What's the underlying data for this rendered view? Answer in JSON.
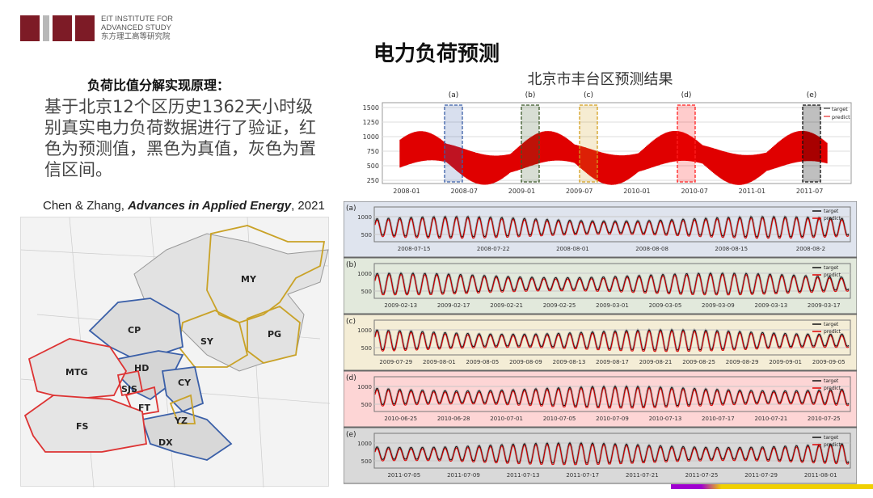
{
  "logo": {
    "line1": "EIT INSTITUTE FOR",
    "line2": "ADVANCED STUDY",
    "line3": "东方理工高等研究院",
    "colors": {
      "brand": "#7d1b26"
    }
  },
  "title": "电力负荷预测",
  "subtitle": "负荷比值分解实现原理：",
  "body": "基于北京12个区历史1362天小时级别真实电力负荷数据进行了验证，红色为预测值，黑色为真值，灰色为置信区间。",
  "citation": {
    "authors": "Chen & Zhang, ",
    "journal": "Advances in Applied Energy",
    "year": ", 2021"
  },
  "map": {
    "labels": [
      "MY",
      "CP",
      "SY",
      "PG",
      "HD",
      "MTG",
      "CY",
      "SJS",
      "FT",
      "FS",
      "YZ",
      "DX"
    ]
  },
  "overview": {
    "title": "北京市丰台区预测结果",
    "yticks": [
      "1500",
      "1250",
      "1000",
      "750",
      "500",
      "250"
    ],
    "xticks": [
      "2008-01",
      "2008-07",
      "2009-01",
      "2009-07",
      "2010-01",
      "2010-07",
      "2011-01",
      "2011-07"
    ],
    "windows": [
      {
        "label": "(a)",
        "color": "#3a5fa8"
      },
      {
        "label": "(b)",
        "color": "#3d5a2a"
      },
      {
        "label": "(c)",
        "color": "#d4a020"
      },
      {
        "label": "(d)",
        "color": "#ff2020"
      },
      {
        "label": "(e)",
        "color": "#111111"
      }
    ],
    "legend": [
      "target",
      "predict"
    ]
  },
  "panels": [
    {
      "label": "(a)",
      "bg": "#dfe4ee",
      "yticks": [
        "1000",
        "500"
      ],
      "xticks": [
        "2008-07-15",
        "2008-07-22",
        "2008-08-01",
        "2008-08-08",
        "2008-08-15",
        "2008-08-2"
      ]
    },
    {
      "label": "(b)",
      "bg": "#e2e9dc",
      "yticks": [
        "1000",
        "500"
      ],
      "xticks": [
        "2009-02-13",
        "2009-02-17",
        "2009-02-21",
        "2009-02-25",
        "2009-03-01",
        "2009-03-05",
        "2009-03-09",
        "2009-03-13",
        "2009-03-17"
      ]
    },
    {
      "label": "(c)",
      "bg": "#f4edd6",
      "yticks": [
        "1000",
        "500"
      ],
      "xticks": [
        "2009-07-29",
        "2009-08-01",
        "2009-08-05",
        "2009-08-09",
        "2009-08-13",
        "2009-08-17",
        "2009-08-21",
        "2009-08-25",
        "2009-08-29",
        "2009-09-01",
        "2009-09-05"
      ]
    },
    {
      "label": "(d)",
      "bg": "#fdd5d5",
      "yticks": [
        "1000",
        "500"
      ],
      "xticks": [
        "2010-06-25",
        "2010-06-28",
        "2010-07-01",
        "2010-07-05",
        "2010-07-09",
        "2010-07-13",
        "2010-07-17",
        "2010-07-21",
        "2010-07-25"
      ]
    },
    {
      "label": "(e)",
      "bg": "#d9d9d9",
      "yticks": [
        "1000",
        "500"
      ],
      "xticks": [
        "2011-07-05",
        "2011-07-09",
        "2011-07-13",
        "2011-07-17",
        "2011-07-21",
        "2011-07-25",
        "2011-07-29",
        "2011-08-01"
      ]
    }
  ],
  "colors": {
    "target": "#111111",
    "predict": "#e00000",
    "confidence": "#aaaaaa"
  }
}
